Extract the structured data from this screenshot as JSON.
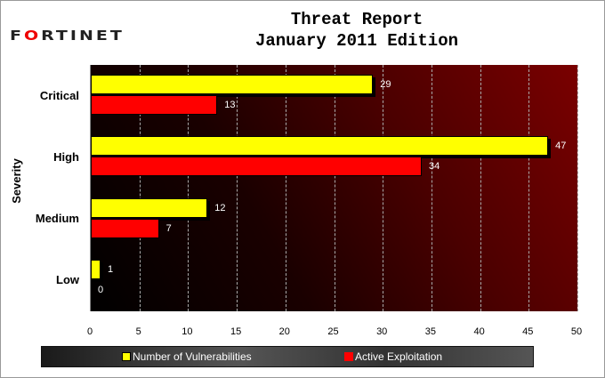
{
  "logo": "FORTINET",
  "chart_data": {
    "type": "bar",
    "orientation": "horizontal",
    "title": "Threat Report",
    "subtitle": "January 2011 Edition",
    "categories": [
      "Critical",
      "High",
      "Medium",
      "Low"
    ],
    "series": [
      {
        "name": "Number of Vulnerabilities",
        "color": "#ffff00",
        "values": [
          29,
          47,
          12,
          1
        ]
      },
      {
        "name": "Active Exploitation",
        "color": "#ff0000",
        "values": [
          13,
          34,
          7,
          0
        ]
      }
    ],
    "ylabel": "Severity",
    "xlabel": "",
    "xlim": [
      0,
      50
    ],
    "xticks": [
      "0",
      "5",
      "10",
      "15",
      "20",
      "25",
      "30",
      "35",
      "40",
      "45",
      "50"
    ],
    "grid": true,
    "legend": "bottom"
  }
}
